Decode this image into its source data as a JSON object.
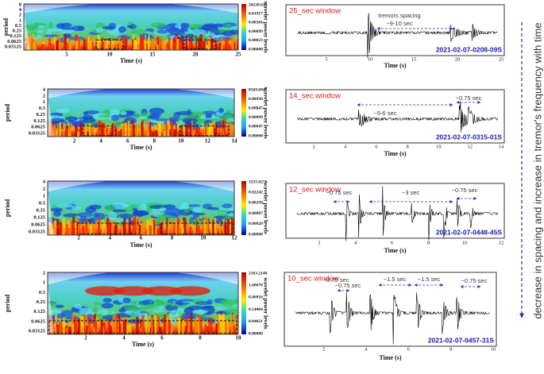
{
  "panels": [
    {
      "wavelet": {
        "ylabel": "period",
        "yticks": [
          "8",
          "4",
          "2",
          "1",
          "0.5",
          "0.25",
          "0.125",
          "0.0625",
          "0.03125"
        ],
        "xticks": [
          "5",
          "10",
          "15",
          "20",
          "25"
        ],
        "xlabel": "Time (s)",
        "colorbar": [
          "20220.614",
          "0.01917",
          "0.00381",
          "0.00099",
          "0.00023",
          "0.00000"
        ],
        "colorbar_label": "wavelet power levels"
      },
      "seismogram": {
        "window": "25_sec window",
        "id": "2021-02-07-0208-09S",
        "xticks": [
          "5",
          "10",
          "15",
          "20",
          "25"
        ],
        "xlabel": "Time (s)",
        "annotations": [
          "tremors spacing",
          "~9-10 sec"
        ]
      }
    },
    {
      "wavelet": {
        "ylabel": "period",
        "yticks": [
          "4",
          "2",
          "1",
          "0.5",
          "0.25",
          "0.125",
          "0.0625",
          "0.03125"
        ],
        "xticks": [
          "2",
          "4",
          "6",
          "8",
          "10",
          "12",
          "14"
        ],
        "xlabel": "Time (s)",
        "colorbar": [
          "8569.6945",
          "0.08436",
          "0.00847",
          "0.00099",
          "0.00047",
          "0.00000"
        ],
        "colorbar_label": "wavelet power levels"
      },
      "seismogram": {
        "window": "14_sec window",
        "id": "2021-02-07-0315-01S",
        "xticks": [
          "2",
          "4",
          "6",
          "8",
          "10",
          "12",
          "14"
        ],
        "xlabel": "Time (s)",
        "annotations": [
          "~5-6 sec",
          "~0.75 sec"
        ]
      }
    },
    {
      "wavelet": {
        "ylabel": "period",
        "yticks": [
          "4",
          "2",
          "1",
          "0.5",
          "0.25",
          "0.125",
          "0.0625",
          "0.03125"
        ],
        "xticks": [
          "2",
          "4",
          "6",
          "8",
          "10",
          "12"
        ],
        "xlabel": "Time (s)",
        "colorbar": [
          "3233.6276",
          "0.02242",
          "0.00294",
          "0.00087",
          "0.00028",
          "0.00000"
        ],
        "colorbar_label": "wavelet power levels"
      },
      "seismogram": {
        "window": "12_sec window",
        "id": "2021-02-07-0448-45S",
        "xticks": [
          "2",
          "4",
          "6",
          "8",
          "10",
          "12"
        ],
        "xlabel": "Time (s)",
        "annotations": [
          "~0.75 sec",
          "~3 sec",
          "~0.75 sec"
        ]
      }
    },
    {
      "wavelet": {
        "ylabel": "period",
        "yticks": [
          "2",
          "1",
          "0.5",
          "0.25",
          "0.125",
          "0.0625",
          "0.03125"
        ],
        "xticks": [
          "2",
          "4",
          "6",
          "8",
          "10"
        ],
        "xlabel": "Time (s)",
        "colorbar": [
          "2163.2140",
          "1.60676",
          "0.46016",
          "0.14404",
          "0.04021",
          "0.00000"
        ],
        "colorbar_label": "wavelet power levels"
      },
      "seismogram": {
        "window": "10_sec window",
        "id": "2021-02-07-0457-31S",
        "xticks": [
          "2",
          "4",
          "6",
          "8",
          "10"
        ],
        "xlabel": "Time (s)",
        "annotations": [
          "~0.75 sec",
          "~0.75 sec",
          "~1.5 sec",
          "~1.5 sec",
          "~0.75 sec"
        ]
      }
    }
  ],
  "side_label": "decrease in spacing and increase in tremor's frequency with time"
}
